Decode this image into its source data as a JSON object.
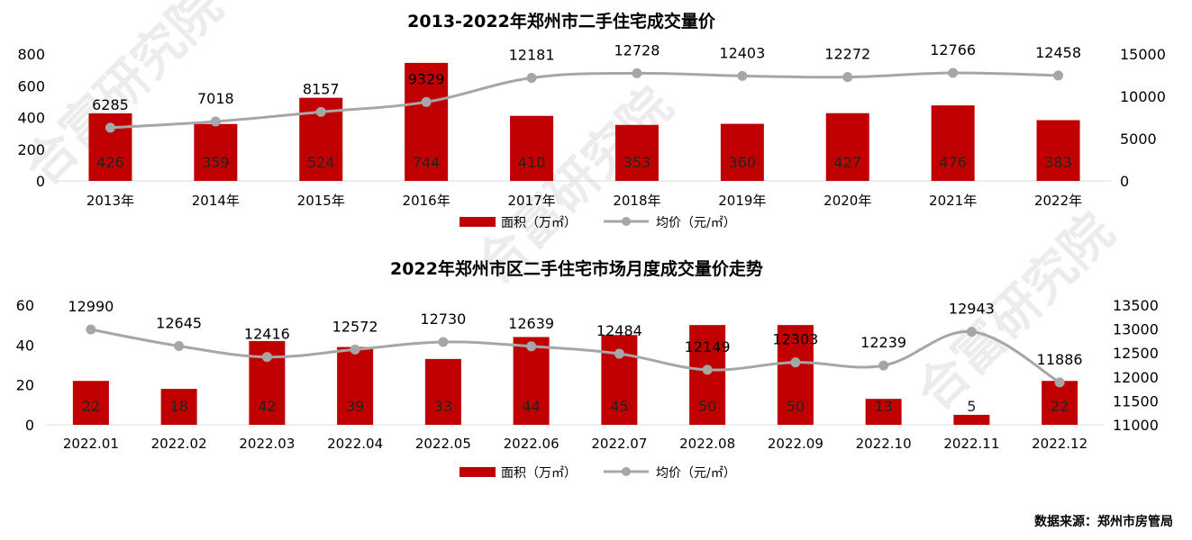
{
  "chart_data": [
    {
      "type": "bar",
      "title": "2013-2022年郑州市二手住宅成交量价",
      "categories": [
        "2013年",
        "2014年",
        "2015年",
        "2016年",
        "2017年",
        "2018年",
        "2019年",
        "2020年",
        "2021年",
        "2022年"
      ],
      "series": [
        {
          "name": "面积（万㎡）",
          "type": "bar",
          "axis": "left",
          "color": "#c00000",
          "values": [
            426,
            359,
            524,
            744,
            410,
            353,
            360,
            427,
            476,
            383
          ]
        },
        {
          "name": "均价（元/㎡）",
          "type": "line",
          "axis": "right",
          "color": "#a6a6a6",
          "values": [
            6285,
            7018,
            8157,
            9329,
            12181,
            12728,
            12403,
            12272,
            12766,
            12458
          ]
        }
      ],
      "ylim_left": [
        0,
        800
      ],
      "yticks_left": [
        0,
        200,
        400,
        600,
        800
      ],
      "ylim_right": [
        0,
        15000
      ],
      "yticks_right": [
        0,
        5000,
        10000,
        15000
      ],
      "legend": "bottom",
      "grid": false
    },
    {
      "type": "bar",
      "title": "2022年郑州市区二手住宅市场月度成交量价走势",
      "categories": [
        "2022.01",
        "2022.02",
        "2022.03",
        "2022.04",
        "2022.05",
        "2022.06",
        "2022.07",
        "2022.08",
        "2022.09",
        "2022.10",
        "2022.11",
        "2022.12"
      ],
      "series": [
        {
          "name": "面积（万㎡）",
          "type": "bar",
          "axis": "left",
          "color": "#c00000",
          "values": [
            22,
            18,
            42,
            39,
            33,
            44,
            45,
            50,
            50,
            13,
            5,
            22
          ]
        },
        {
          "name": "均价（元/㎡）",
          "type": "line",
          "axis": "right",
          "color": "#a6a6a6",
          "values": [
            12990,
            12645,
            12416,
            12572,
            12730,
            12639,
            12484,
            12149,
            12303,
            12239,
            12943,
            11886
          ]
        }
      ],
      "ylim_left": [
        0,
        60
      ],
      "yticks_left": [
        0,
        20,
        40,
        60
      ],
      "ylim_right": [
        11000,
        13500
      ],
      "yticks_right": [
        11000,
        11500,
        12000,
        12500,
        13000,
        13500
      ],
      "legend": "bottom",
      "grid": false
    }
  ],
  "source": "数据来源：郑州市房管局",
  "watermark": "合富研究院"
}
